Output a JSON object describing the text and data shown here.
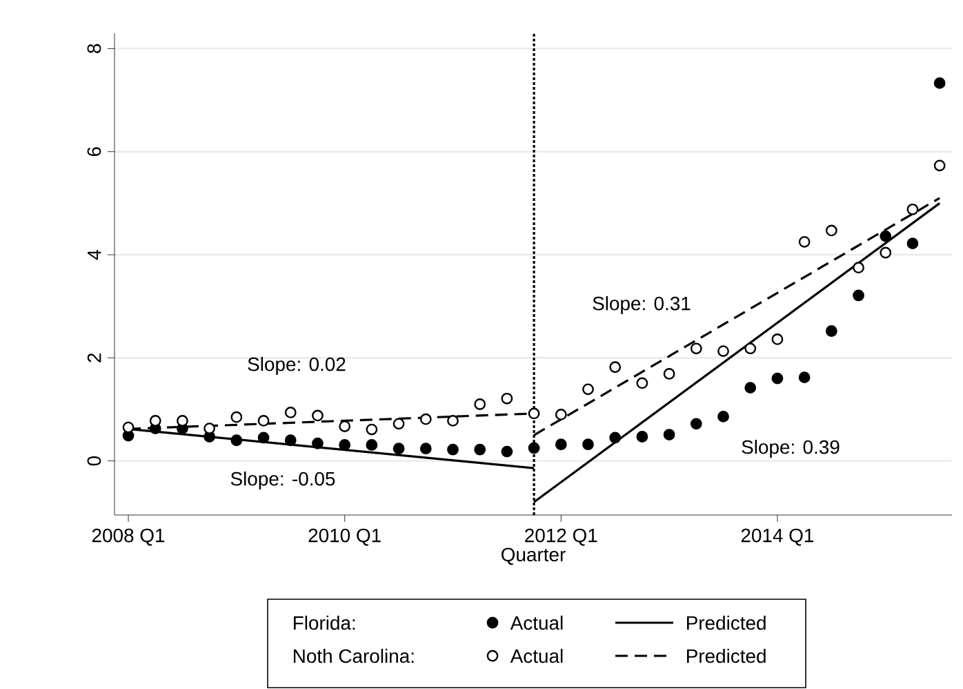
{
  "chart_data": {
    "type": "scatter",
    "xlabel": "Quarter",
    "x": [
      "2008-01",
      "2008-04",
      "2008-07",
      "2008-10",
      "2009-01",
      "2009-04",
      "2009-07",
      "2009-10",
      "2010-01",
      "2010-04",
      "2010-07",
      "2010-10",
      "2011-01",
      "2011-04",
      "2011-07",
      "2011-10",
      "2012-01",
      "2012-04",
      "2012-07",
      "2012-10",
      "2013-01",
      "2013-04",
      "2013-07",
      "2013-10",
      "2014-01",
      "2014-04",
      "2014-07",
      "2014-10",
      "2015-01",
      "2015-04",
      "2015-07"
    ],
    "series": [
      {
        "name": "Actual",
        "marker": "circle",
        "color": "#000000",
        "values": [
          0.49,
          0.63,
          0.63,
          0.47,
          0.4,
          0.45,
          0.4,
          0.34,
          0.31,
          0.31,
          0.24,
          0.24,
          0.22,
          0.22,
          0.18,
          0.25,
          0.32,
          0.32,
          0.45,
          0.47,
          0.51,
          0.72,
          0.86,
          1.42,
          1.6,
          1.62,
          2.52,
          3.21,
          4.36,
          4.22,
          7.33
        ]
      },
      {
        "name": "Predicted",
        "type": "line",
        "line_style": "solid",
        "color": "#000000",
        "x": [
          "2008-01",
          "2011-10"
        ],
        "values": [
          0.62,
          -0.14
        ]
      },
      {
        "name": "Actual",
        "marker": "circle",
        "color": "#ffffff",
        "values": [
          0.65,
          0.78,
          0.78,
          0.63,
          0.85,
          0.78,
          0.94,
          0.88,
          0.67,
          0.61,
          0.72,
          0.81,
          0.78,
          1.1,
          1.21,
          0.92,
          0.9,
          1.39,
          1.82,
          1.51,
          1.69,
          2.18,
          2.13,
          2.18,
          2.36,
          4.25,
          4.47,
          3.75,
          4.04,
          4.88,
          5.73
        ]
      },
      {
        "name": "Predicted",
        "type": "line",
        "line_style": "dashed",
        "color": "#000000",
        "x": [
          "2008-01",
          "2011-10"
        ],
        "values": [
          0.62,
          0.92
        ]
      },
      {
        "type": "line",
        "line_style": "solid",
        "color": "#000000",
        "x": [
          "2011-10",
          "2015-07"
        ],
        "values": [
          -0.8,
          5.0
        ]
      },
      {
        "type": "line",
        "line_style": "dashed",
        "color": "#000000",
        "x": [
          "2011-10",
          "2015-07"
        ],
        "values": [
          0.5,
          5.1
        ]
      }
    ],
    "xlim": [
      "2007-11-15",
      "2015-08-12"
    ],
    "ylim": [
      -1.05,
      8.3
    ],
    "xticks": [
      {
        "value": "2008-01",
        "label": "2008 Q1"
      },
      {
        "value": "2010-01",
        "label": "2010 Q1"
      },
      {
        "value": "2012-01",
        "label": "2012 Q1"
      },
      {
        "value": "2014-01",
        "label": "2014 Q1"
      }
    ],
    "yticks": [
      0,
      2,
      4,
      6,
      8
    ],
    "grid": "y",
    "legend": "bottom",
    "ref_lines": [
      {
        "axis": "x",
        "value": "2011-10",
        "color": "#000000",
        "line_style": "dotted"
      }
    ],
    "annotations": [
      "Slope: 0.02",
      "Slope: -0.05",
      "Slope: 0.31",
      "Slope: 0.39",
      "Florida:",
      "Noth Carolina:"
    ]
  }
}
